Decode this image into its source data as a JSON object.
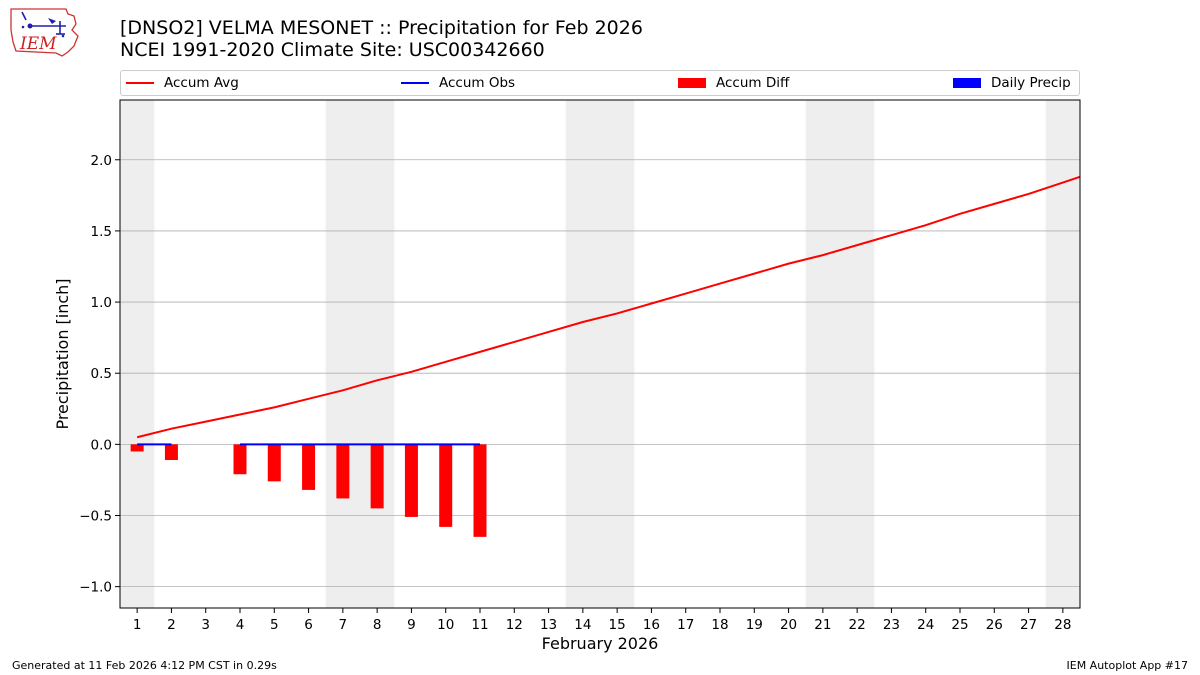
{
  "header": {
    "logo_text": "IEM",
    "title_line1": "[DNSO2] VELMA MESONET :: Precipitation for Feb 2026",
    "title_line2": "NCEI 1991-2020 Climate Site: USC00342660"
  },
  "legend": {
    "accum_avg": "Accum Avg",
    "accum_obs": "Accum Obs",
    "accum_diff": "Accum Diff",
    "daily_precip": "Daily Precip"
  },
  "colors": {
    "accum_avg": "#ff0000",
    "accum_obs": "#0000ff",
    "accum_diff": "#ff0000",
    "daily_precip": "#0000ff",
    "weekend_shade": "#eeeeee",
    "grid": "#b0b0b0"
  },
  "footer": {
    "generated": "Generated at 11 Feb 2026 4:12 PM CST in 0.29s",
    "app": "IEM Autoplot App #17"
  },
  "chart_data": {
    "type": "line",
    "xlabel": "February 2026",
    "ylabel": "Precipitation [inch]",
    "xlim": [
      0.5,
      28.5
    ],
    "ylim": [
      -1.15,
      2.42
    ],
    "x_ticks": [
      1,
      2,
      3,
      4,
      5,
      6,
      7,
      8,
      9,
      10,
      11,
      12,
      13,
      14,
      15,
      16,
      17,
      18,
      19,
      20,
      21,
      22,
      23,
      24,
      25,
      26,
      27,
      28
    ],
    "y_ticks": [
      -1.0,
      -0.5,
      0.0,
      0.5,
      1.0,
      1.5,
      2.0
    ],
    "y_tick_labels": [
      "−1.0",
      "−0.5",
      "0.0",
      "0.5",
      "1.0",
      "1.5",
      "2.0"
    ],
    "weekend_shade": [
      [
        0.5,
        1.5
      ],
      [
        6.5,
        8.5
      ],
      [
        13.5,
        15.5
      ],
      [
        20.5,
        22.5
      ],
      [
        27.5,
        28.5
      ]
    ],
    "grid": true,
    "legend_position": "top",
    "accum_avg": {
      "x": [
        1,
        2,
        3,
        4,
        5,
        6,
        7,
        8,
        9,
        10,
        11,
        12,
        13,
        14,
        15,
        16,
        17,
        18,
        19,
        20,
        21,
        22,
        23,
        24,
        25,
        26,
        27,
        28,
        28.5
      ],
      "y": [
        0.05,
        0.11,
        0.16,
        0.21,
        0.26,
        0.32,
        0.38,
        0.45,
        0.51,
        0.58,
        0.65,
        0.72,
        0.79,
        0.86,
        0.92,
        0.99,
        1.06,
        1.13,
        1.2,
        1.27,
        1.33,
        1.4,
        1.47,
        1.54,
        1.62,
        1.69,
        1.76,
        1.84,
        1.88
      ]
    },
    "accum_obs": {
      "segments": [
        {
          "x": [
            1,
            2
          ],
          "y": [
            0.0,
            0.0
          ]
        },
        {
          "x": [
            4,
            11
          ],
          "y": [
            0.0,
            0.0
          ]
        }
      ]
    },
    "accum_diff": {
      "x": [
        1,
        2,
        4,
        5,
        6,
        7,
        8,
        9,
        10,
        11
      ],
      "y": [
        -0.05,
        -0.11,
        -0.21,
        -0.26,
        -0.32,
        -0.38,
        -0.45,
        -0.51,
        -0.58,
        -0.65
      ]
    },
    "daily_precip": {
      "x": [],
      "y": []
    }
  }
}
